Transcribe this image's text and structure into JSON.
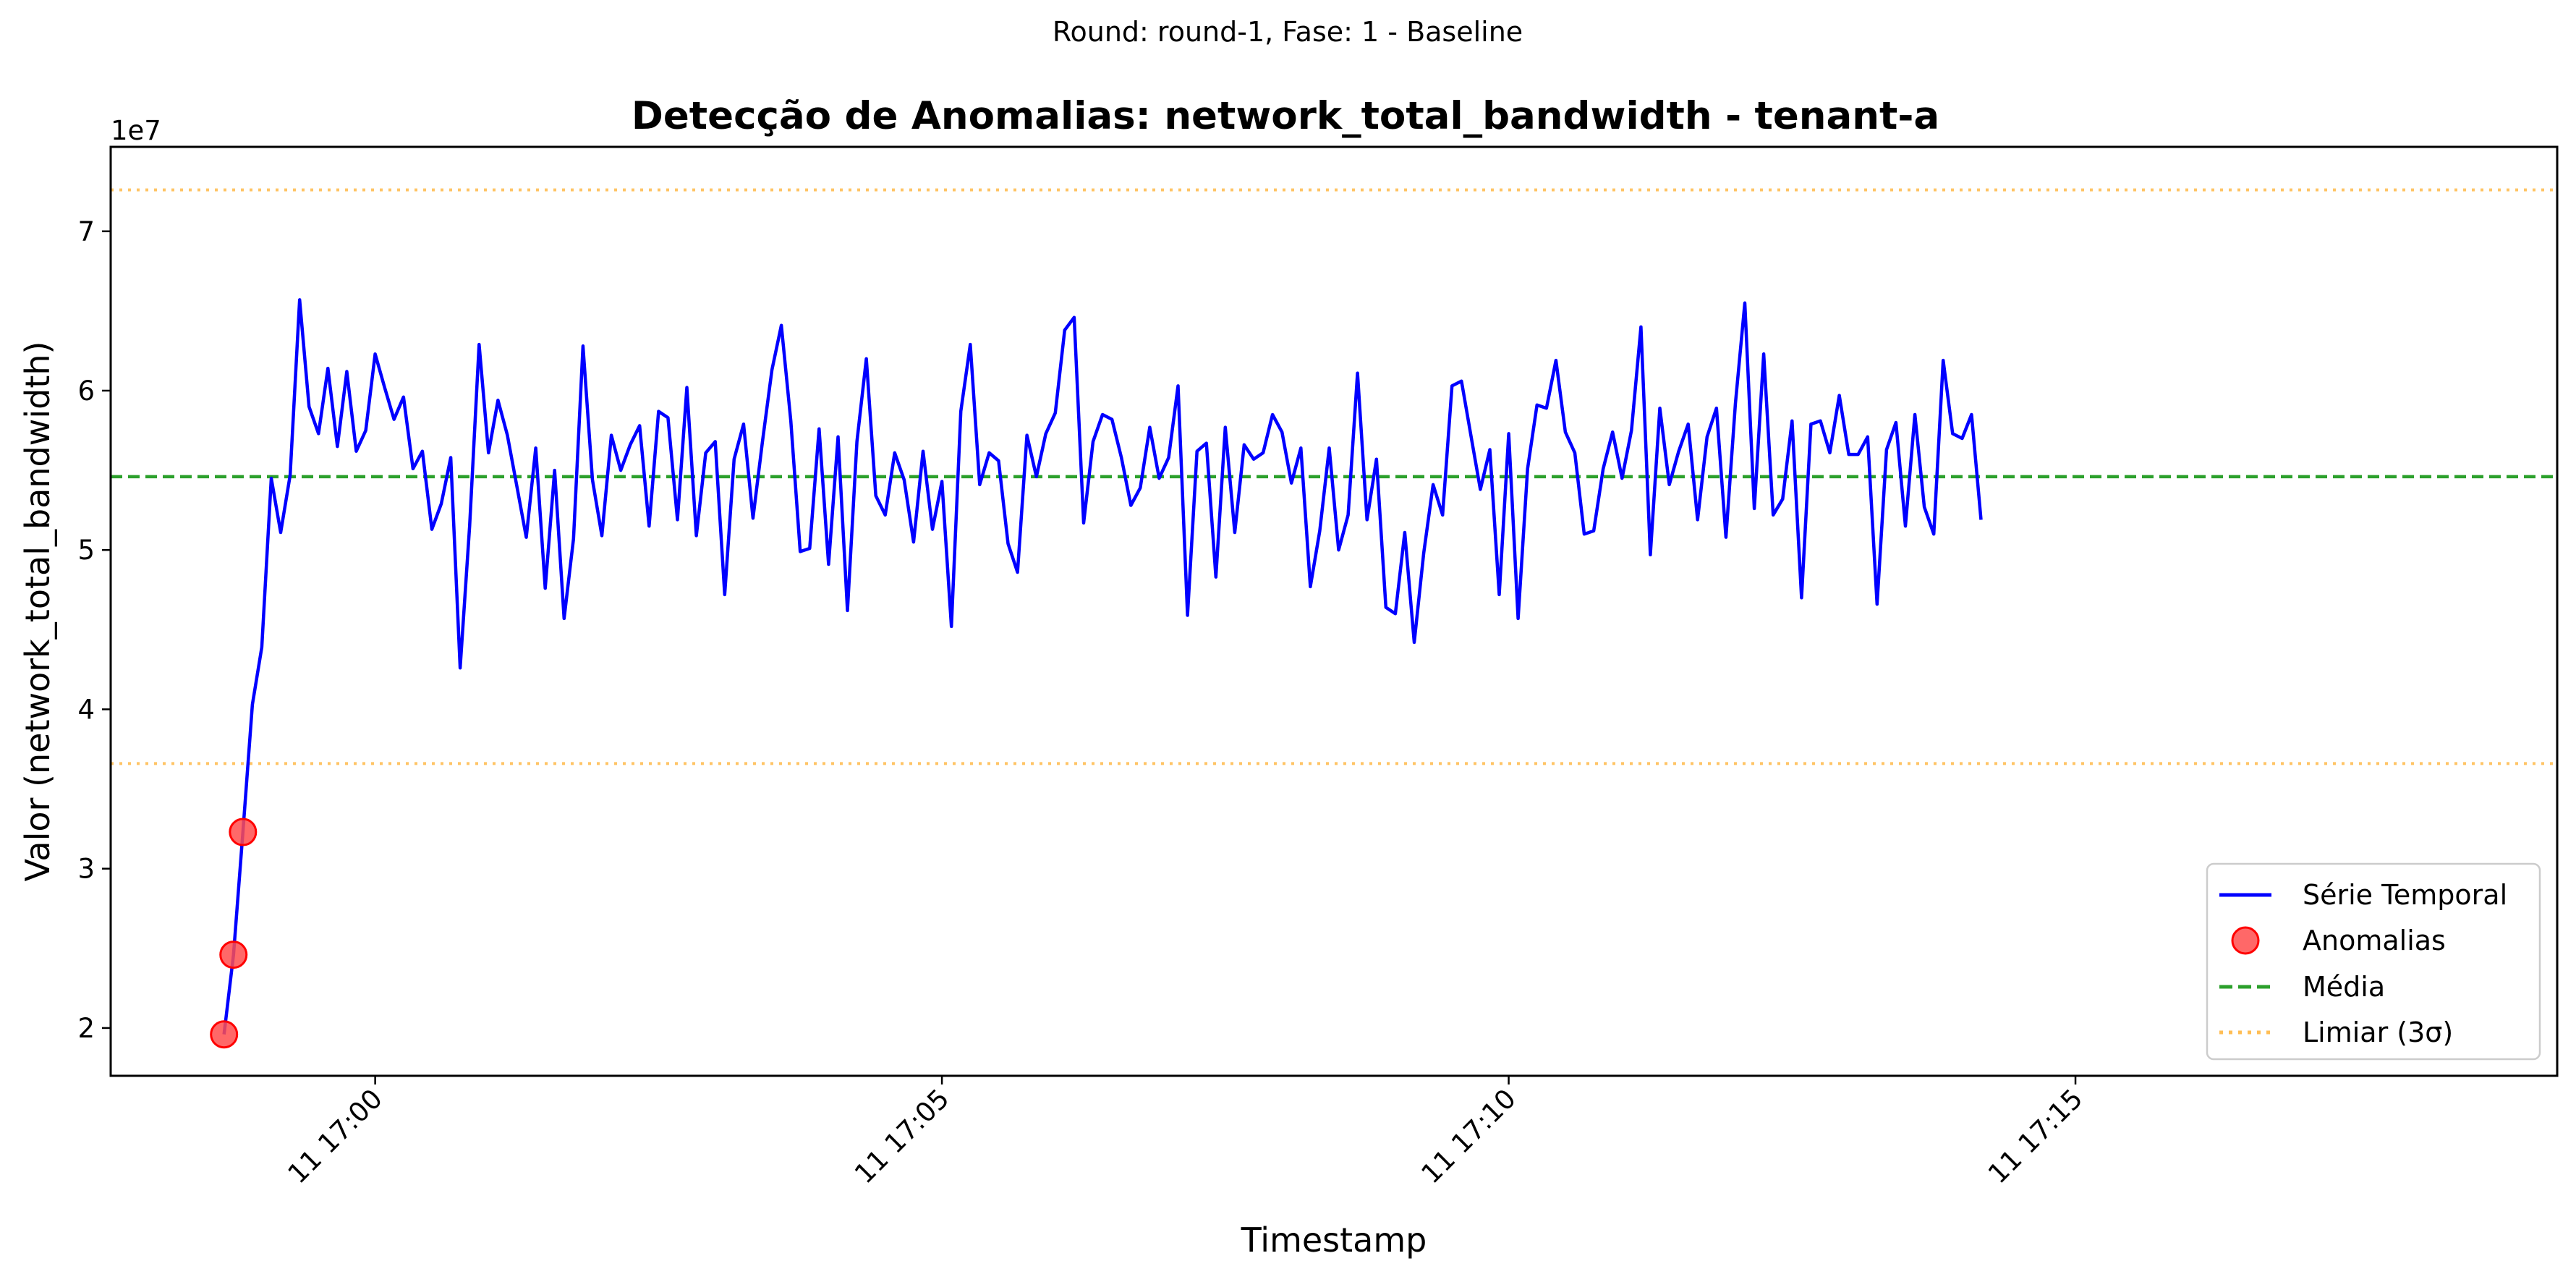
{
  "suptitle": "Round: round-1, Fase: 1 - Baseline",
  "colors": {
    "series": "#0000ff",
    "anomaly": "#ff4d4d",
    "mean": "#2ca02c",
    "threshold": "#ffbe55"
  },
  "chart_data": {
    "type": "line",
    "title": "Detecção de Anomalias: network_total_bandwidth - tenant-a",
    "xlabel": "Timestamp",
    "ylabel": "Valor (network_total_bandwidth)",
    "y_offset_label": "1e7",
    "y_scale": 10000000,
    "ylim": [
      17000000,
      75300000
    ],
    "y_ticks": [
      20000000,
      30000000,
      40000000,
      50000000,
      60000000,
      70000000
    ],
    "y_tick_labels": [
      "2",
      "3",
      "4",
      "5",
      "6",
      "7"
    ],
    "xlim": [
      "2025-06-11 16:57:40",
      "2025-06-11 17:19:15"
    ],
    "x_ticks": [
      "2025-06-11 17:00:00",
      "2025-06-11 17:05:00",
      "2025-06-11 17:10:00",
      "2025-06-11 17:15:00"
    ],
    "x_tick_labels": [
      "11 17:00",
      "11 17:05",
      "11 17:10",
      "11 17:15"
    ],
    "x_start": "2025-06-11 16:58:40",
    "x_step_seconds": 5,
    "grid": false,
    "legend_position": "lower right",
    "series": [
      {
        "name": "Série Temporal",
        "role": "line",
        "values": [
          19600000,
          24600000,
          32300000,
          40300000,
          43900000,
          54500000,
          51100000,
          54700000,
          65700000,
          59000000,
          57300000,
          61400000,
          56500000,
          61200000,
          56200000,
          57500000,
          62300000,
          60200000,
          58200000,
          59600000,
          55100000,
          56200000,
          51300000,
          52900000,
          55800000,
          42600000,
          51500000,
          62900000,
          56100000,
          59400000,
          57200000,
          54000000,
          50800000,
          56400000,
          47600000,
          55000000,
          45700000,
          50700000,
          62800000,
          54400000,
          50900000,
          57200000,
          55000000,
          56600000,
          57800000,
          51500000,
          58700000,
          58300000,
          51900000,
          60200000,
          50900000,
          56100000,
          56800000,
          47200000,
          55700000,
          57900000,
          52000000,
          56800000,
          61300000,
          64100000,
          58100000,
          49900000,
          50100000,
          57600000,
          49100000,
          57100000,
          46200000,
          56800000,
          62000000,
          53400000,
          52200000,
          56100000,
          54400000,
          50500000,
          56200000,
          51300000,
          54300000,
          45200000,
          58700000,
          62900000,
          54100000,
          56100000,
          55600000,
          50400000,
          48600000,
          57200000,
          54600000,
          57300000,
          58600000,
          63800000,
          64600000,
          51700000,
          56800000,
          58500000,
          58200000,
          55800000,
          52800000,
          53900000,
          57700000,
          54500000,
          55800000,
          60300000,
          45900000,
          56200000,
          56700000,
          48300000,
          57700000,
          51100000,
          56600000,
          55700000,
          56100000,
          58500000,
          57400000,
          54200000,
          56400000,
          47700000,
          51200000,
          56400000,
          50000000,
          52200000,
          61100000,
          51900000,
          55700000,
          46400000,
          46000000,
          51100000,
          44200000,
          49800000,
          54100000,
          52200000,
          60300000,
          60600000,
          57200000,
          53800000,
          56300000,
          47200000,
          57300000,
          45700000,
          55100000,
          59100000,
          58900000,
          61900000,
          57400000,
          56100000,
          51000000,
          51200000,
          55100000,
          57400000,
          54500000,
          57500000,
          64000000,
          49700000,
          58900000,
          54100000,
          56200000,
          57900000,
          51900000,
          57100000,
          58900000,
          50800000,
          59200000,
          65500000,
          52600000,
          62300000,
          52200000,
          53200000,
          58100000,
          47000000,
          57900000,
          58100000,
          56100000,
          59700000,
          56000000,
          56000000,
          57100000,
          46600000,
          56300000,
          58000000,
          51500000,
          58500000,
          52700000,
          51000000,
          61900000,
          57300000,
          57000000,
          58500000,
          51900000
        ]
      },
      {
        "name": "Anomalias",
        "role": "points",
        "x": [
          "2025-06-11 16:58:40",
          "2025-06-11 16:58:45",
          "2025-06-11 16:58:50"
        ],
        "values": [
          19600000,
          24600000,
          32300000
        ]
      },
      {
        "name": "Média",
        "role": "hline",
        "value": 54600000
      },
      {
        "name": "Limiar (3σ)",
        "role": "hline-pair",
        "values": [
          36600000,
          72600000
        ]
      }
    ]
  }
}
